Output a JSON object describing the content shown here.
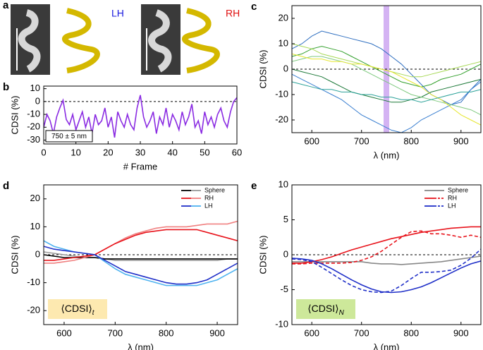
{
  "panel_a": {
    "label": "a",
    "left_label": "LH",
    "right_label": "RH"
  },
  "chart_data": [
    {
      "type": "line",
      "panel": "b",
      "xlabel": "# Frame",
      "ylabel": "CDSI (%)",
      "annotation": "750 ± 5 nm",
      "annotation_color": "#ffffff",
      "xlim": [
        0,
        60
      ],
      "xticks": [
        0,
        10,
        20,
        30,
        40,
        50,
        60
      ],
      "ylim": [
        -33,
        12
      ],
      "yticks": [
        -30,
        -20,
        -10,
        0,
        10
      ],
      "reference_line": 0,
      "x": [
        0,
        1,
        2,
        3,
        4,
        5,
        6,
        7,
        8,
        9,
        10,
        11,
        12,
        13,
        14,
        15,
        16,
        17,
        18,
        19,
        20,
        21,
        22,
        23,
        24,
        25,
        26,
        27,
        28,
        29,
        30,
        31,
        32,
        33,
        34,
        35,
        36,
        37,
        38,
        39,
        40,
        41,
        42,
        43,
        44,
        45,
        46,
        47,
        48,
        49,
        50,
        51,
        52,
        53,
        54,
        55,
        56,
        57,
        58,
        59,
        60
      ],
      "series": [
        {
          "color": "#8a2be2",
          "values": [
            -20,
            -10,
            -15,
            -25,
            -12,
            -5,
            1,
            -14,
            -18,
            -10,
            -22,
            -15,
            -8,
            -20,
            -12,
            -25,
            -10,
            -18,
            -15,
            -5,
            -20,
            -12,
            -28,
            -8,
            -15,
            -20,
            -10,
            -18,
            -22,
            -5,
            5,
            -12,
            -20,
            -15,
            -8,
            -25,
            -12,
            -18,
            -5,
            -20,
            -10,
            -15,
            -22,
            -8,
            -18,
            -12,
            -2,
            -20,
            -15,
            -25,
            -8,
            -18,
            -12,
            -20,
            -10,
            -5,
            -15,
            -20,
            -8,
            0,
            3
          ]
        }
      ]
    },
    {
      "type": "line",
      "panel": "c",
      "xlabel": "λ (nm)",
      "ylabel": "CDSI (%)",
      "highlight_x": 750,
      "highlight_color": "#c9a0f0",
      "xlim": [
        560,
        940
      ],
      "xticks": [
        600,
        700,
        800,
        900
      ],
      "ylim": [
        -25,
        25
      ],
      "yticks": [
        -20,
        -10,
        0,
        10,
        20
      ],
      "reference_line": 0,
      "x": [
        560,
        580,
        600,
        620,
        640,
        660,
        680,
        700,
        720,
        740,
        760,
        780,
        800,
        820,
        840,
        860,
        880,
        900,
        920,
        940
      ],
      "series": [
        {
          "color": "#2f6fc0",
          "values": [
            8,
            10,
            13,
            15,
            14,
            13,
            12,
            11,
            10,
            8,
            5,
            2,
            -2,
            -6,
            -10,
            -12,
            -14,
            -13,
            -8,
            -4
          ]
        },
        {
          "color": "#3a7fd0",
          "values": [
            -2,
            -4,
            -6,
            -8,
            -10,
            -12,
            -15,
            -18,
            -20,
            -22,
            -24,
            -25,
            -23,
            -20,
            -18,
            -16,
            -14,
            -12,
            -8,
            -5
          ]
        },
        {
          "color": "#33a02c",
          "values": [
            5,
            6,
            8,
            9,
            8,
            7,
            5,
            3,
            1,
            -1,
            -3,
            -5,
            -6,
            -7,
            -6,
            -4,
            -3,
            -2,
            0,
            2
          ]
        },
        {
          "color": "#a6d854",
          "values": [
            10,
            9,
            8,
            6,
            5,
            4,
            3,
            2,
            1,
            0,
            -1,
            -2,
            -3,
            -3,
            -2,
            -1,
            0,
            1,
            2,
            3
          ]
        },
        {
          "color": "#1b7837",
          "values": [
            0,
            -1,
            -2,
            -3,
            -5,
            -7,
            -9,
            -10,
            -11,
            -12,
            -13,
            -13,
            -12,
            -11,
            -9,
            -8,
            -7,
            -6,
            -5,
            -4
          ]
        },
        {
          "color": "#7fc97f",
          "values": [
            3,
            4,
            5,
            5,
            4,
            3,
            2,
            0,
            -2,
            -4,
            -6,
            -8,
            -10,
            -11,
            -12,
            -13,
            -14,
            -15,
            -16,
            -18
          ]
        },
        {
          "color": "#e6e62e",
          "values": [
            6,
            5,
            4,
            4,
            3,
            3,
            2,
            2,
            1,
            0,
            -1,
            -3,
            -5,
            -7,
            -10,
            -12,
            -15,
            -18,
            -20,
            -22
          ]
        },
        {
          "color": "#2aa198",
          "values": [
            -5,
            -6,
            -7,
            -8,
            -8,
            -9,
            -9,
            -10,
            -10,
            -11,
            -11,
            -12,
            -12,
            -13,
            -12,
            -11,
            -10,
            -9,
            -9,
            -8
          ]
        }
      ]
    },
    {
      "type": "line",
      "panel": "d",
      "xlabel": "λ (nm)",
      "ylabel": "CDSI (%)",
      "annotation": "⟨CDSI⟩",
      "annotation_sub": "t",
      "annotation_color": "#fde9b0",
      "xlim": [
        560,
        940
      ],
      "xticks": [
        600,
        700,
        800,
        900
      ],
      "ylim": [
        -25,
        25
      ],
      "yticks": [
        -20,
        -10,
        0,
        10,
        20
      ],
      "reference_line": 0,
      "x": [
        560,
        580,
        600,
        620,
        640,
        660,
        680,
        700,
        720,
        740,
        760,
        780,
        800,
        820,
        840,
        860,
        880,
        900,
        920,
        940
      ],
      "series": [
        {
          "name": "Sphere",
          "color": "#000000",
          "values": [
            0,
            -0.5,
            -1,
            -1,
            -1,
            -1,
            -1.5,
            -1.5,
            -1.5,
            -1.5,
            -1.5,
            -1.5,
            -1.5,
            -1.5,
            -1.5,
            -1.5,
            -1.5,
            -1.5,
            -1.5,
            -1.5
          ],
          "color_2": "#999999",
          "values_2": [
            1,
            0.5,
            0,
            -0.5,
            -1,
            -1,
            -1.5,
            -2,
            -2,
            -2,
            -2,
            -2,
            -2,
            -2,
            -2,
            -2,
            -2,
            -2,
            -1.5,
            -1.5
          ]
        },
        {
          "name": "RH",
          "color": "#e8141c",
          "values": [
            -2,
            -2,
            -1.5,
            -1,
            -0.5,
            0,
            2,
            4,
            5.5,
            7,
            8,
            8.5,
            9,
            9,
            9,
            9,
            8,
            7,
            6,
            5
          ],
          "color_2": "#f08080",
          "values_2": [
            -3,
            -3,
            -2.5,
            -2,
            -1,
            0,
            2,
            4,
            6,
            7.5,
            8.5,
            9.5,
            10,
            10,
            10,
            10.5,
            11,
            11,
            11,
            12
          ]
        },
        {
          "name": "LH",
          "color": "#1f2fc8",
          "values": [
            3,
            2,
            1.5,
            1,
            0.5,
            0,
            -2,
            -4,
            -6,
            -7,
            -8,
            -9,
            -10,
            -10.5,
            -10.5,
            -10,
            -9,
            -7,
            -5,
            -3
          ],
          "color_2": "#4fb3f0",
          "values_2": [
            5,
            3,
            2,
            1,
            0.5,
            0,
            -2.5,
            -5,
            -7,
            -8,
            -9,
            -10,
            -11,
            -11,
            -11,
            -11,
            -10,
            -9,
            -7,
            -5
          ]
        }
      ]
    },
    {
      "type": "line",
      "panel": "e",
      "xlabel": "λ (nm)",
      "ylabel": "CDSI (%)",
      "annotation": "⟨CDSI⟩",
      "annotation_sub": "N",
      "annotation_color": "#cde89a",
      "xlim": [
        560,
        940
      ],
      "xticks": [
        600,
        700,
        800,
        900
      ],
      "ylim": [
        -10,
        10
      ],
      "yticks": [
        -10,
        -5,
        0,
        5,
        10
      ],
      "reference_line": 0,
      "x": [
        560,
        580,
        600,
        620,
        640,
        660,
        680,
        700,
        720,
        740,
        760,
        780,
        800,
        820,
        840,
        860,
        880,
        900,
        920,
        940
      ],
      "series": [
        {
          "name": "Sphere",
          "color": "#888888",
          "values": [
            -1,
            -1,
            -1,
            -1,
            -1,
            -1,
            -1,
            -1,
            -1.2,
            -1.3,
            -1.3,
            -1.4,
            -1.3,
            -1.2,
            -1.1,
            -1,
            -0.8,
            -0.6,
            -0.4,
            -0.2
          ]
        },
        {
          "name": "RH",
          "color": "#e8141c",
          "values": [
            -1.2,
            -1.2,
            -1,
            -0.7,
            -0.3,
            0.2,
            0.7,
            1.1,
            1.5,
            1.9,
            2.3,
            2.6,
            2.9,
            3.2,
            3.4,
            3.6,
            3.8,
            3.9,
            4,
            4
          ],
          "color_2": "#e8141c",
          "style_2": "dashed",
          "values_2": [
            -1.3,
            -1.3,
            -1.2,
            -1.2,
            -1.2,
            -1.2,
            -1.1,
            -0.8,
            -0.3,
            0.5,
            1.5,
            2.5,
            3.3,
            3.4,
            3,
            3,
            2.8,
            2.5,
            2.8,
            2.5
          ]
        },
        {
          "name": "LH",
          "color": "#1f2fc8",
          "values": [
            -0.5,
            -0.6,
            -0.8,
            -1.3,
            -2,
            -2.8,
            -3.6,
            -4.3,
            -4.9,
            -5.3,
            -5.4,
            -5.3,
            -5,
            -4.6,
            -4,
            -3.3,
            -2.6,
            -1.9,
            -1.3,
            -0.9
          ],
          "color_2": "#1f2fc8",
          "style_2": "dashed",
          "values_2": [
            -0.6,
            -0.7,
            -1,
            -1.8,
            -2.7,
            -3.6,
            -4.4,
            -5,
            -5.3,
            -5.4,
            -5.2,
            -4.4,
            -3.4,
            -2.5,
            -2.5,
            -2.4,
            -2.2,
            -1.5,
            -0.5,
            0.8
          ]
        }
      ]
    }
  ]
}
